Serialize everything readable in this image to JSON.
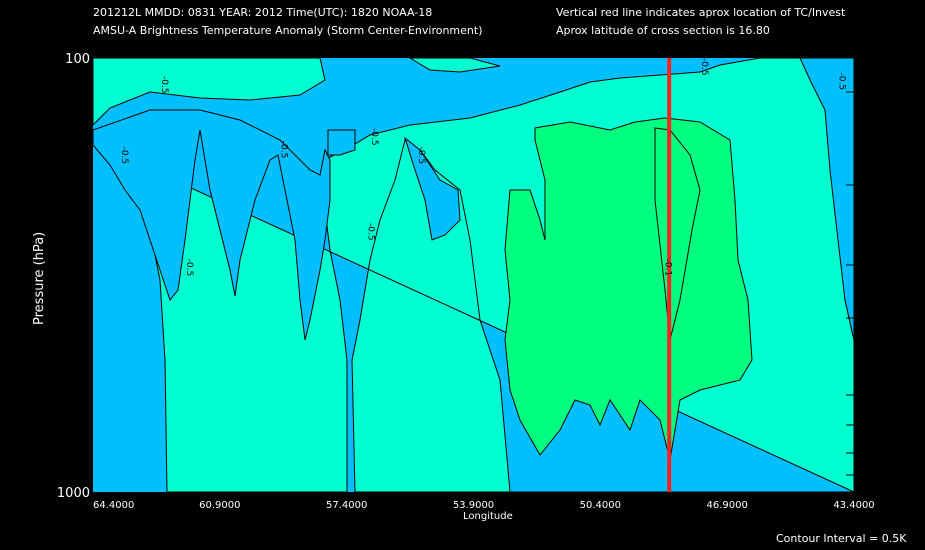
{
  "header": {
    "line1_left": "201212L  MMDD: 0831 YEAR: 2012 Time(UTC): 1820 NOAA-18",
    "line2_left": "AMSU-A Brightness Temperature Anomaly (Storm Center-Environment)",
    "line1_right": "Vertical red line indicates aprox location of TC/Invest",
    "line2_right": "Aprox latitude of cross section is 16.80"
  },
  "footer": {
    "contour_interval": "Contour Interval = 0.5K"
  },
  "colors": {
    "background": "#000000",
    "level_neg1_0": "#00bfff",
    "level_neg0_5": "#00ffd0",
    "level_0": "#00ff80",
    "tc_line": "#ff2020",
    "contour": "#000000"
  },
  "chart_data": {
    "type": "contour",
    "title": "AMSU-A Brightness Temperature Anomaly (Storm Center-Environment)",
    "xlabel": "Longitude",
    "ylabel": "Pressure (hPa)",
    "xlim": [
      64.4,
      43.4
    ],
    "ylim": [
      1000,
      100
    ],
    "y_scale": "log",
    "x_ticks": [
      "64.4000",
      "60.9000",
      "57.4000",
      "53.9000",
      "50.4000",
      "46.9000",
      "43.4000"
    ],
    "y_ticks": [
      "100",
      "1000"
    ],
    "tc_longitude": 48.5,
    "contour_interval_K": 0.5,
    "contour_labels": [
      {
        "text": "-0.5",
        "lon": 63.6,
        "p": 160
      },
      {
        "text": "-0.5",
        "lon": 61.8,
        "p": 290
      },
      {
        "text": "-0.5",
        "lon": 59.2,
        "p": 155
      },
      {
        "text": "-0.5",
        "lon": 56.7,
        "p": 145
      },
      {
        "text": "-0.5",
        "lon": 56.8,
        "p": 240
      },
      {
        "text": "-0.5",
        "lon": 55.4,
        "p": 160
      },
      {
        "text": "-0.5",
        "lon": 62.5,
        "p": 110
      },
      {
        "text": "-0.5",
        "lon": 47.6,
        "p": 100
      },
      {
        "text": "-0.5",
        "lon": 43.8,
        "p": 108
      },
      {
        "text": "-0.1",
        "lon": 48.6,
        "p": 290
      }
    ]
  }
}
